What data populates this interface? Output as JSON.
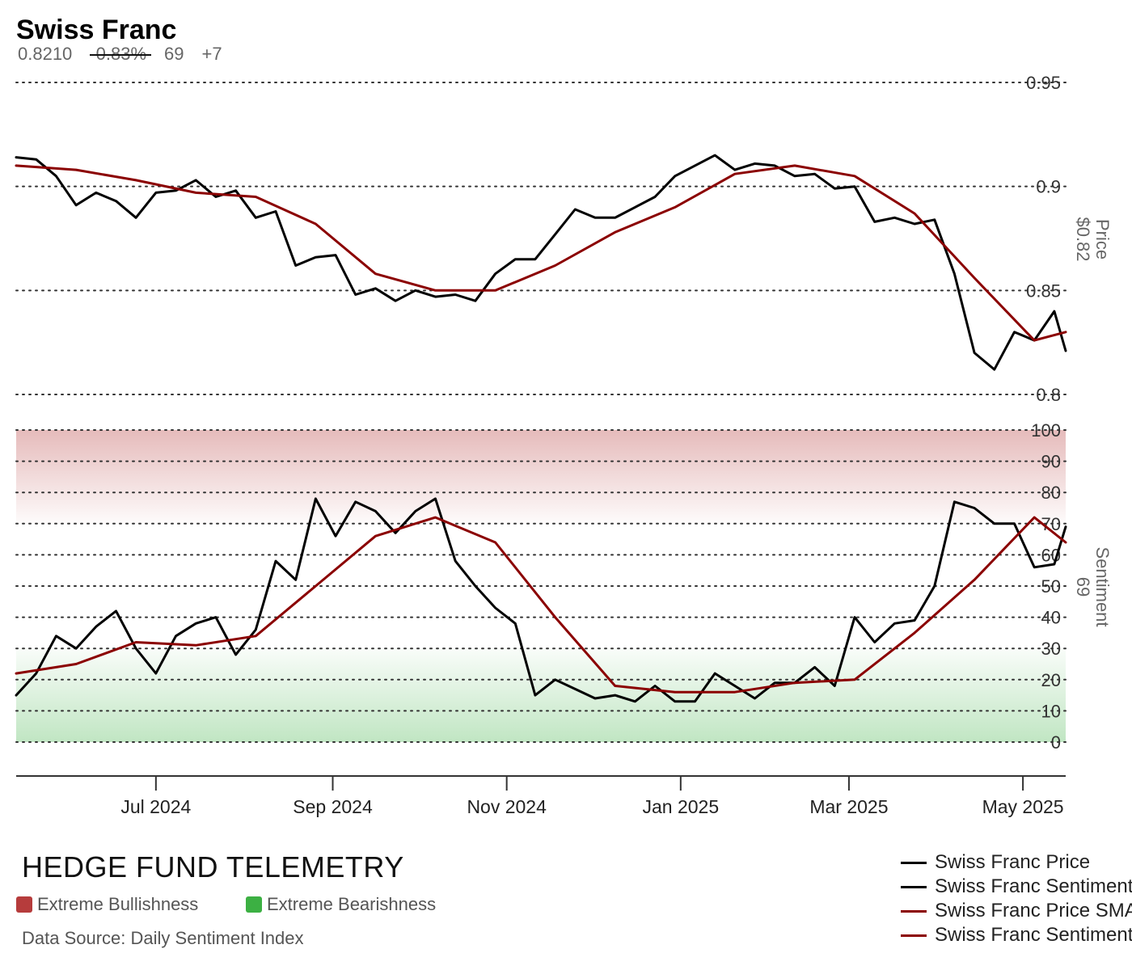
{
  "header": {
    "title": "Swiss Franc",
    "price": "0.8210",
    "change": "-0.83%",
    "sentiment": "69",
    "sentiment_change": "+7"
  },
  "branding": {
    "name": "HEDGE FUND TELEMETRY",
    "source": "Data Source: Daily Sentiment Index"
  },
  "key": {
    "bull_label": "Extreme Bullishness",
    "bull_color": "#b63c3c",
    "bear_label": "Extreme Bearishness",
    "bear_color": "#3cb043"
  },
  "legend": [
    {
      "label": "Swiss Franc Price",
      "color": "#000000"
    },
    {
      "label": "Swiss Franc Sentiment",
      "color": "#000000"
    },
    {
      "label": "Swiss Franc Price SMA",
      "color": "#8b0000"
    },
    {
      "label": "Swiss Franc Sentiment SMA",
      "color": "#8b0000"
    }
  ],
  "chart_data": [
    {
      "type": "line",
      "title": "Price",
      "ylabel": "Price",
      "ylabel_value": "$0.82",
      "ylim": [
        0.8,
        0.95
      ],
      "yticks": [
        "0.8",
        "0.85",
        "0.9",
        "0.95"
      ],
      "yticks_values": [
        0.8,
        0.85,
        0.9,
        0.95
      ],
      "x_start": "2024-05-13",
      "x_end": "2025-05-16",
      "xticks": [
        {
          "date": "2024-07-01",
          "label": "Jul 2024"
        },
        {
          "date": "2024-09-01",
          "label": "Sep 2024"
        },
        {
          "date": "2024-11-01",
          "label": "Nov 2024"
        },
        {
          "date": "2025-01-01",
          "label": "Jan 2025"
        },
        {
          "date": "2025-03-01",
          "label": "Mar 2025"
        },
        {
          "date": "2025-05-01",
          "label": "May 2025"
        }
      ],
      "grid": true,
      "series": [
        {
          "name": "Swiss Franc Price",
          "color": "#000000",
          "points": [
            [
              "2024-05-13",
              0.914
            ],
            [
              "2024-05-20",
              0.913
            ],
            [
              "2024-05-27",
              0.905
            ],
            [
              "2024-06-03",
              0.891
            ],
            [
              "2024-06-10",
              0.897
            ],
            [
              "2024-06-17",
              0.893
            ],
            [
              "2024-06-24",
              0.885
            ],
            [
              "2024-07-01",
              0.897
            ],
            [
              "2024-07-08",
              0.898
            ],
            [
              "2024-07-15",
              0.903
            ],
            [
              "2024-07-22",
              0.895
            ],
            [
              "2024-07-29",
              0.898
            ],
            [
              "2024-08-05",
              0.885
            ],
            [
              "2024-08-12",
              0.888
            ],
            [
              "2024-08-19",
              0.862
            ],
            [
              "2024-08-26",
              0.866
            ],
            [
              "2024-09-02",
              0.867
            ],
            [
              "2024-09-09",
              0.848
            ],
            [
              "2024-09-16",
              0.851
            ],
            [
              "2024-09-23",
              0.845
            ],
            [
              "2024-09-30",
              0.85
            ],
            [
              "2024-10-07",
              0.847
            ],
            [
              "2024-10-14",
              0.848
            ],
            [
              "2024-10-21",
              0.845
            ],
            [
              "2024-10-28",
              0.858
            ],
            [
              "2024-11-04",
              0.865
            ],
            [
              "2024-11-11",
              0.865
            ],
            [
              "2024-11-18",
              0.877
            ],
            [
              "2024-11-25",
              0.889
            ],
            [
              "2024-12-02",
              0.885
            ],
            [
              "2024-12-09",
              0.885
            ],
            [
              "2024-12-16",
              0.89
            ],
            [
              "2024-12-23",
              0.895
            ],
            [
              "2024-12-30",
              0.905
            ],
            [
              "2025-01-06",
              0.91
            ],
            [
              "2025-01-13",
              0.915
            ],
            [
              "2025-01-20",
              0.908
            ],
            [
              "2025-01-27",
              0.911
            ],
            [
              "2025-02-03",
              0.91
            ],
            [
              "2025-02-10",
              0.905
            ],
            [
              "2025-02-17",
              0.906
            ],
            [
              "2025-02-24",
              0.899
            ],
            [
              "2025-03-03",
              0.9
            ],
            [
              "2025-03-10",
              0.883
            ],
            [
              "2025-03-17",
              0.885
            ],
            [
              "2025-03-24",
              0.882
            ],
            [
              "2025-03-31",
              0.884
            ],
            [
              "2025-04-07",
              0.858
            ],
            [
              "2025-04-14",
              0.82
            ],
            [
              "2025-04-21",
              0.812
            ],
            [
              "2025-04-28",
              0.83
            ],
            [
              "2025-05-05",
              0.826
            ],
            [
              "2025-05-12",
              0.84
            ],
            [
              "2025-05-16",
              0.821
            ]
          ]
        },
        {
          "name": "Swiss Franc Price SMA",
          "color": "#8b0000",
          "points": [
            [
              "2024-05-13",
              0.91
            ],
            [
              "2024-06-03",
              0.908
            ],
            [
              "2024-06-24",
              0.903
            ],
            [
              "2024-07-15",
              0.897
            ],
            [
              "2024-08-05",
              0.895
            ],
            [
              "2024-08-26",
              0.882
            ],
            [
              "2024-09-16",
              0.858
            ],
            [
              "2024-10-07",
              0.85
            ],
            [
              "2024-10-28",
              0.85
            ],
            [
              "2024-11-18",
              0.862
            ],
            [
              "2024-12-09",
              0.878
            ],
            [
              "2024-12-30",
              0.89
            ],
            [
              "2025-01-20",
              0.906
            ],
            [
              "2025-02-10",
              0.91
            ],
            [
              "2025-03-03",
              0.905
            ],
            [
              "2025-03-24",
              0.887
            ],
            [
              "2025-04-14",
              0.856
            ],
            [
              "2025-05-05",
              0.826
            ],
            [
              "2025-05-16",
              0.83
            ]
          ]
        }
      ]
    },
    {
      "type": "line",
      "title": "Sentiment",
      "ylabel": "Sentiment",
      "ylabel_value": "69",
      "ylim": [
        0,
        100
      ],
      "yticks": [
        "0",
        "10",
        "20",
        "30",
        "40",
        "50",
        "60",
        "70",
        "80",
        "90",
        "100"
      ],
      "yticks_values": [
        0,
        10,
        20,
        30,
        40,
        50,
        60,
        70,
        80,
        90,
        100
      ],
      "bands": [
        {
          "name": "Extreme Bullishness",
          "from": 70,
          "to": 100,
          "color": "#b63c3c"
        },
        {
          "name": "Extreme Bearishness",
          "from": 0,
          "to": 30,
          "color": "#3cb043"
        }
      ],
      "grid": true,
      "series": [
        {
          "name": "Swiss Franc Sentiment",
          "color": "#000000",
          "points": [
            [
              "2024-05-13",
              15
            ],
            [
              "2024-05-20",
              22
            ],
            [
              "2024-05-27",
              34
            ],
            [
              "2024-06-03",
              30
            ],
            [
              "2024-06-10",
              37
            ],
            [
              "2024-06-17",
              42
            ],
            [
              "2024-06-24",
              30
            ],
            [
              "2024-07-01",
              22
            ],
            [
              "2024-07-08",
              34
            ],
            [
              "2024-07-15",
              38
            ],
            [
              "2024-07-22",
              40
            ],
            [
              "2024-07-29",
              28
            ],
            [
              "2024-08-05",
              36
            ],
            [
              "2024-08-12",
              58
            ],
            [
              "2024-08-19",
              52
            ],
            [
              "2024-08-26",
              78
            ],
            [
              "2024-09-02",
              66
            ],
            [
              "2024-09-09",
              77
            ],
            [
              "2024-09-16",
              74
            ],
            [
              "2024-09-23",
              67
            ],
            [
              "2024-09-30",
              74
            ],
            [
              "2024-10-07",
              78
            ],
            [
              "2024-10-14",
              58
            ],
            [
              "2024-10-21",
              50
            ],
            [
              "2024-10-28",
              43
            ],
            [
              "2024-11-04",
              38
            ],
            [
              "2024-11-11",
              15
            ],
            [
              "2024-11-18",
              20
            ],
            [
              "2024-11-25",
              17
            ],
            [
              "2024-12-02",
              14
            ],
            [
              "2024-12-09",
              15
            ],
            [
              "2024-12-16",
              13
            ],
            [
              "2024-12-23",
              18
            ],
            [
              "2024-12-30",
              13
            ],
            [
              "2025-01-06",
              13
            ],
            [
              "2025-01-13",
              22
            ],
            [
              "2025-01-20",
              18
            ],
            [
              "2025-01-27",
              14
            ],
            [
              "2025-02-03",
              19
            ],
            [
              "2025-02-10",
              19
            ],
            [
              "2025-02-17",
              24
            ],
            [
              "2025-02-24",
              18
            ],
            [
              "2025-03-03",
              40
            ],
            [
              "2025-03-10",
              32
            ],
            [
              "2025-03-17",
              38
            ],
            [
              "2025-03-24",
              39
            ],
            [
              "2025-03-31",
              50
            ],
            [
              "2025-04-07",
              77
            ],
            [
              "2025-04-14",
              75
            ],
            [
              "2025-04-21",
              70
            ],
            [
              "2025-04-28",
              70
            ],
            [
              "2025-05-05",
              56
            ],
            [
              "2025-05-12",
              57
            ],
            [
              "2025-05-16",
              69
            ]
          ]
        },
        {
          "name": "Swiss Franc Sentiment SMA",
          "color": "#8b0000",
          "points": [
            [
              "2024-05-13",
              22
            ],
            [
              "2024-06-03",
              25
            ],
            [
              "2024-06-24",
              32
            ],
            [
              "2024-07-15",
              31
            ],
            [
              "2024-08-05",
              34
            ],
            [
              "2024-08-26",
              50
            ],
            [
              "2024-09-16",
              66
            ],
            [
              "2024-10-07",
              72
            ],
            [
              "2024-10-28",
              64
            ],
            [
              "2024-11-18",
              40
            ],
            [
              "2024-12-09",
              18
            ],
            [
              "2024-12-30",
              16
            ],
            [
              "2025-01-20",
              16
            ],
            [
              "2025-02-10",
              19
            ],
            [
              "2025-03-03",
              20
            ],
            [
              "2025-03-24",
              35
            ],
            [
              "2025-04-14",
              52
            ],
            [
              "2025-05-05",
              72
            ],
            [
              "2025-05-16",
              64
            ]
          ]
        }
      ]
    }
  ]
}
